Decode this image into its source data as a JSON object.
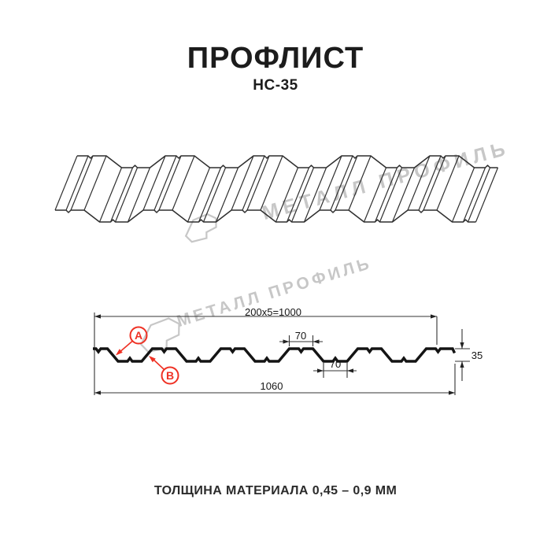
{
  "header": {
    "title": "ПРОФЛИСТ",
    "subtitle": "НС-35"
  },
  "watermark": {
    "text": "МЕТАЛЛ ПРОФИЛЬ"
  },
  "section": {
    "dim_top_width": "200x5=1000",
    "dim_crest_width": "70",
    "dim_valley_width": "70",
    "dim_total_width": "1060",
    "dim_height": "35",
    "callout_a": "A",
    "callout_b": "B"
  },
  "footer": {
    "text": "ТОЛЩИНА МАТЕРИАЛА 0,45 – 0,9 ММ"
  },
  "colors": {
    "accent_red": "#ef3124",
    "watermark_gray": "#c7c7c7",
    "line_dark": "#2f2f2f",
    "profile_black": "#141414"
  }
}
